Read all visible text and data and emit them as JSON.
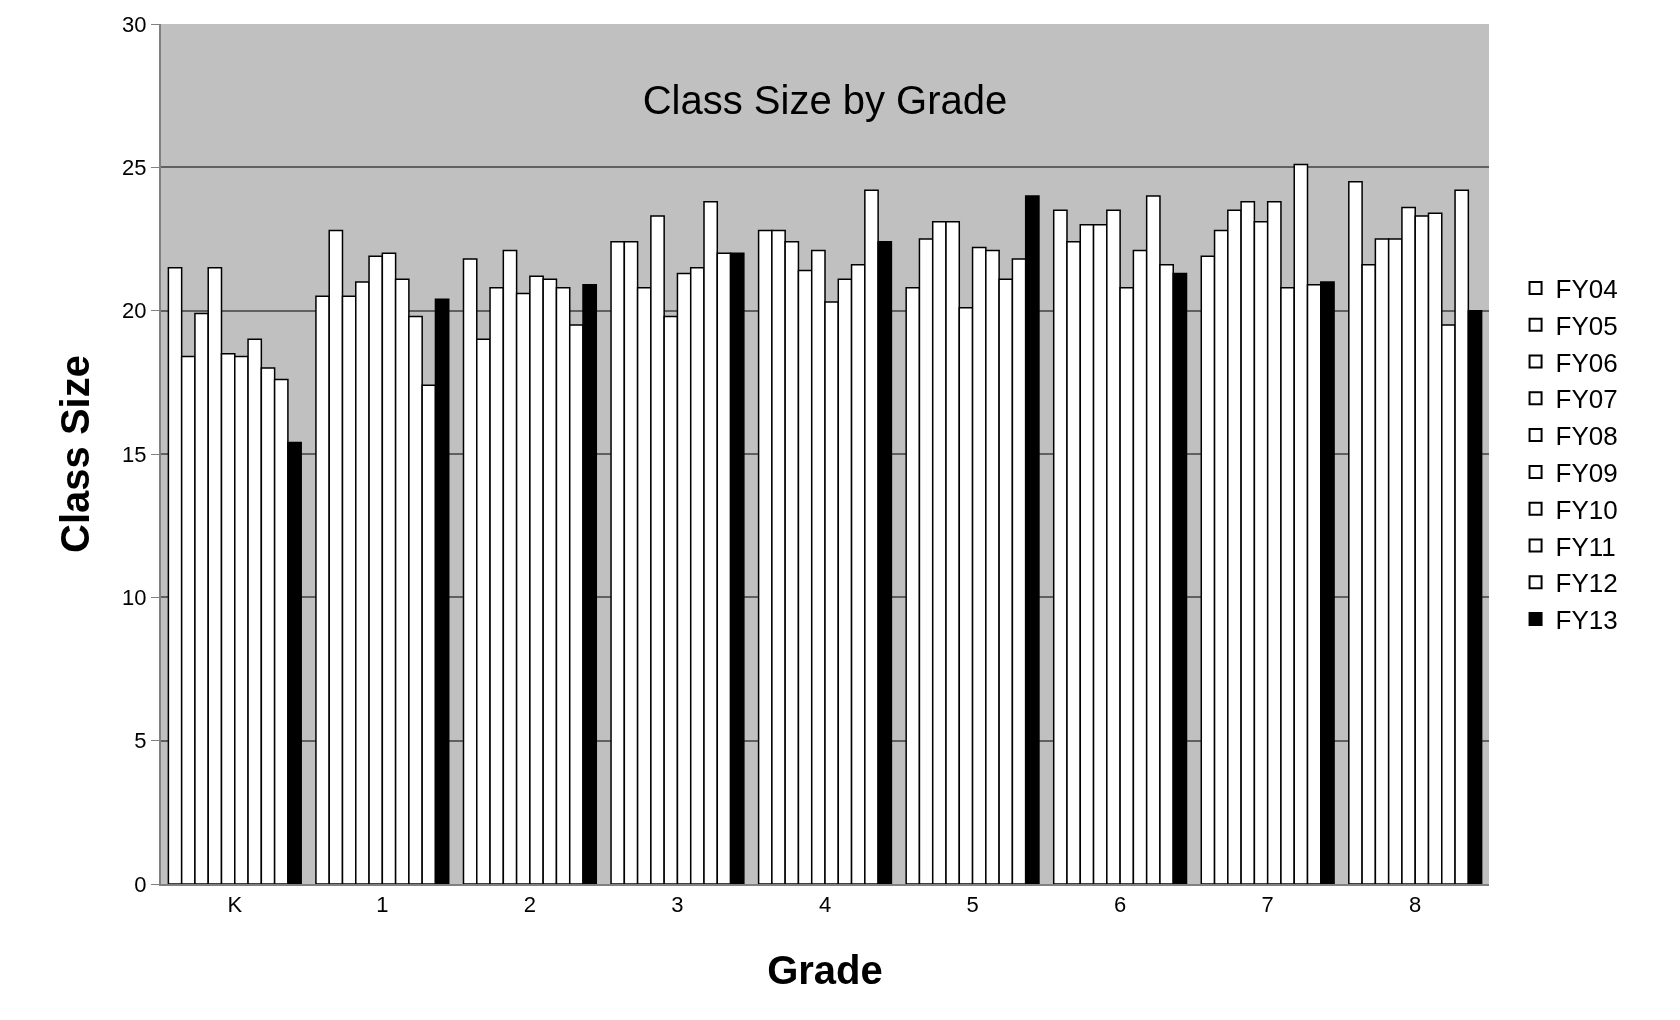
{
  "chart_data": {
    "type": "bar",
    "title": "Class Size by Grade",
    "xlabel": "Grade",
    "ylabel": "Class Size",
    "categories": [
      "K",
      "1",
      "2",
      "3",
      "4",
      "5",
      "6",
      "7",
      "8"
    ],
    "series": [
      {
        "name": "FY04",
        "color": "#ffffff",
        "values": [
          21.5,
          20.5,
          21.8,
          22.4,
          22.8,
          20.8,
          23.5,
          21.9,
          24.5
        ]
      },
      {
        "name": "FY05",
        "color": "#ffffff",
        "values": [
          18.4,
          22.8,
          19.0,
          22.4,
          22.8,
          22.5,
          22.4,
          22.8,
          21.6
        ]
      },
      {
        "name": "FY06",
        "color": "#ffffff",
        "values": [
          19.9,
          20.5,
          20.8,
          20.8,
          22.4,
          23.1,
          23.0,
          23.5,
          22.5
        ]
      },
      {
        "name": "FY07",
        "color": "#ffffff",
        "values": [
          21.5,
          21.0,
          22.1,
          23.3,
          21.4,
          23.1,
          23.0,
          23.8,
          22.5
        ]
      },
      {
        "name": "FY08",
        "color": "#ffffff",
        "values": [
          18.5,
          21.9,
          20.6,
          19.8,
          22.1,
          20.1,
          23.5,
          23.1,
          23.6
        ]
      },
      {
        "name": "FY09",
        "color": "#ffffff",
        "values": [
          18.4,
          22.0,
          21.2,
          21.3,
          20.3,
          22.2,
          20.8,
          23.8,
          23.3
        ]
      },
      {
        "name": "FY10",
        "color": "#ffffff",
        "values": [
          19.0,
          21.1,
          21.1,
          21.5,
          21.1,
          22.1,
          22.1,
          20.8,
          23.4
        ]
      },
      {
        "name": "FY11",
        "color": "#ffffff",
        "values": [
          18.0,
          19.8,
          20.8,
          23.8,
          21.6,
          21.1,
          24.0,
          25.1,
          19.5
        ]
      },
      {
        "name": "FY12",
        "color": "#ffffff",
        "values": [
          17.6,
          17.4,
          19.5,
          22.0,
          24.2,
          21.8,
          21.6,
          20.9,
          24.2
        ]
      },
      {
        "name": "FY13",
        "color": "#000000",
        "values": [
          15.4,
          20.4,
          20.9,
          22.0,
          22.4,
          24.0,
          21.3,
          21.0,
          20.0
        ]
      }
    ],
    "ylim": [
      0,
      30
    ],
    "yticks": [
      0,
      5,
      10,
      15,
      20,
      25,
      30
    ],
    "grid": "y",
    "legend": "right"
  }
}
